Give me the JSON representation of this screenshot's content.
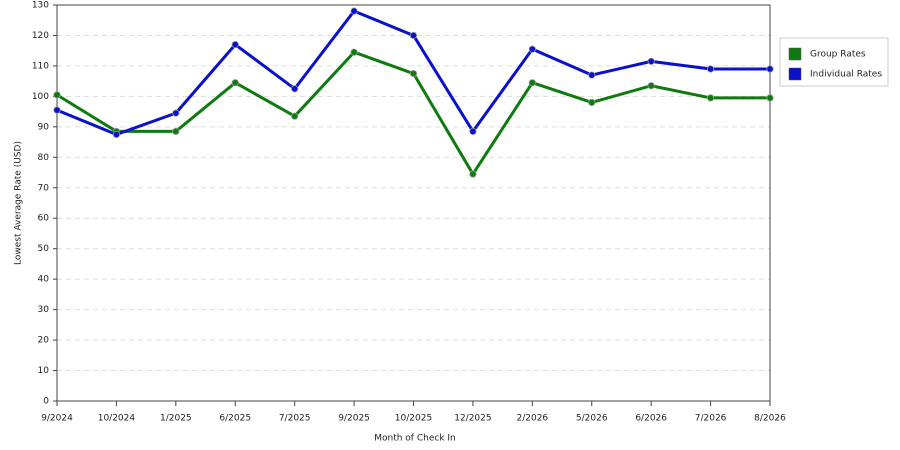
{
  "chart_data": {
    "type": "line",
    "x_label": "Month of Check In",
    "y_label": "Lowest Average Rate (USD)",
    "categories": [
      "9/2024",
      "10/2024",
      "1/2025",
      "6/2025",
      "7/2025",
      "9/2025",
      "10/2025",
      "12/2025",
      "2/2026",
      "5/2026",
      "6/2026",
      "7/2026",
      "8/2026"
    ],
    "series": [
      {
        "name": "Group Rates",
        "color": "#0f7a0f",
        "values": [
          100.5,
          88.5,
          88.5,
          104.5,
          93.5,
          114.5,
          107.5,
          74.5,
          104.5,
          98,
          103.5,
          99.5,
          99.5
        ]
      },
      {
        "name": "Individual Rates",
        "color": "#0a10cc",
        "values": [
          95.5,
          87.5,
          94.5,
          117,
          102.5,
          128,
          120,
          88.5,
          115.5,
          107,
          111.5,
          109,
          109
        ]
      }
    ],
    "ylim": [
      0,
      130
    ],
    "yticks": [
      0,
      10,
      20,
      30,
      40,
      50,
      60,
      70,
      80,
      90,
      100,
      110,
      120,
      130
    ],
    "grid": true
  }
}
